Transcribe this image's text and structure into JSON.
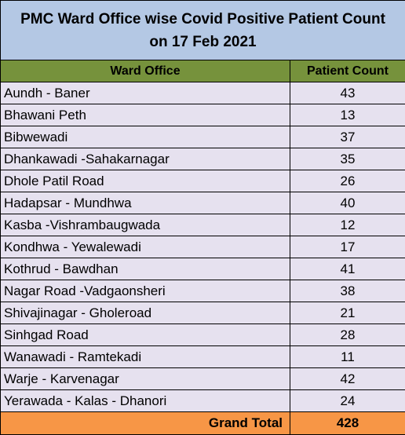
{
  "title": {
    "line1": "PMC Ward Office wise Covid Positive Patient Count",
    "line2": "on 17 Feb 2021"
  },
  "headers": {
    "ward": "Ward Office",
    "count": "Patient Count"
  },
  "rows": [
    {
      "ward": "Aundh - Baner",
      "count": "43"
    },
    {
      "ward": "Bhawani Peth",
      "count": "13"
    },
    {
      "ward": "Bibwewadi",
      "count": "37"
    },
    {
      "ward": "Dhankawadi -Sahakarnagar",
      "count": "35"
    },
    {
      "ward": "Dhole Patil Road",
      "count": "26"
    },
    {
      "ward": "Hadapsar - Mundhwa",
      "count": "40"
    },
    {
      "ward": "Kasba -Vishrambaugwada",
      "count": "12"
    },
    {
      "ward": "Kondhwa - Yewalewadi",
      "count": "17"
    },
    {
      "ward": "Kothrud - Bawdhan",
      "count": "41"
    },
    {
      "ward": "Nagar Road -Vadgaonsheri",
      "count": "38"
    },
    {
      "ward": "Shivajinagar - Gholeroad",
      "count": "21"
    },
    {
      "ward": "Sinhgad Road",
      "count": "28"
    },
    {
      "ward": "Wanawadi - Ramtekadi",
      "count": "11"
    },
    {
      "ward": "Warje - Karvenagar",
      "count": "42"
    },
    {
      "ward": "Yerawada - Kalas - Dhanori",
      "count": "24"
    }
  ],
  "total": {
    "label": "Grand Total",
    "value": "428"
  }
}
